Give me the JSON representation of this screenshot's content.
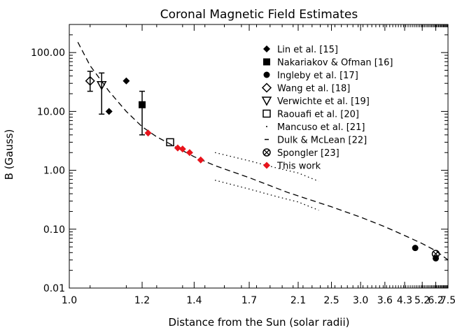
{
  "chart_data": {
    "type": "scatter",
    "title": "Coronal Magnetic Field Estimates",
    "xlabel": "Distance from the Sun (solar radii)",
    "ylabel": "B (Gauss)",
    "xscale": "reciprocal",
    "yscale": "log",
    "xlim": [
      1.0,
      7.5
    ],
    "ylim": [
      0.01,
      300
    ],
    "x_ticks": [
      "1.0",
      "1.2",
      "1.4",
      "1.7",
      "2.1",
      "2.5",
      "3.0",
      "3.6",
      "4.3",
      "5.2",
      "6.2",
      "7.5"
    ],
    "x_tick_values": [
      1.0,
      1.2,
      1.4,
      1.7,
      2.1,
      2.5,
      3.0,
      3.6,
      4.3,
      5.2,
      6.2,
      7.5
    ],
    "y_ticks": [
      "0.01",
      "0.10",
      "1.00",
      "10.00",
      "100.00"
    ],
    "y_tick_values": [
      0.01,
      0.1,
      1,
      10,
      100
    ],
    "legend_position": "top-right",
    "series": [
      {
        "name": "Lin et al. [15]",
        "marker": "filled-diamond",
        "color": "#000000",
        "points": [
          {
            "x": 1.1,
            "y": 10
          },
          {
            "x": 1.15,
            "y": 33
          }
        ]
      },
      {
        "name": "Nakariakov & Ofman [16]",
        "marker": "filled-square",
        "color": "#000000",
        "points": [
          {
            "x": 1.2,
            "y": 13,
            "y_err_low": 4,
            "y_err_high": 22
          }
        ]
      },
      {
        "name": "Ingleby et al. [17]",
        "marker": "filled-circle",
        "color": "#000000",
        "points": [
          {
            "x": 4.8,
            "y": 0.048
          },
          {
            "x": 6.2,
            "y": 0.032
          }
        ]
      },
      {
        "name": "Wang et al. [18]",
        "marker": "open-diamond",
        "color": "#000000",
        "points": [
          {
            "x": 1.05,
            "y": 33,
            "y_err_low": 22,
            "y_err_high": 48
          }
        ]
      },
      {
        "name": "Verwichte et al. [19]",
        "marker": "open-triangle-down",
        "color": "#000000",
        "points": [
          {
            "x": 1.08,
            "y": 28,
            "y_err_low": 9,
            "y_err_high": 45
          }
        ]
      },
      {
        "name": "Raouafi et al. [20]",
        "marker": "open-square",
        "color": "#000000",
        "points": [
          {
            "x": 1.3,
            "y": 3.0
          }
        ]
      },
      {
        "name": "Mancuso et al. [21]",
        "line": "dotted",
        "color": "#000000",
        "lines": [
          [
            [
              1.5,
              2.0
            ],
            [
              1.7,
              1.45
            ],
            [
              1.9,
              1.1
            ],
            [
              2.1,
              0.9
            ],
            [
              2.33,
              0.65
            ]
          ],
          [
            [
              1.5,
              0.68
            ],
            [
              1.7,
              0.48
            ],
            [
              1.9,
              0.36
            ],
            [
              2.1,
              0.29
            ],
            [
              2.33,
              0.21
            ]
          ]
        ]
      },
      {
        "name": "Dulk & McLean [22]",
        "line": "dashed",
        "color": "#000000",
        "lines": [
          [
            [
              1.02,
              150
            ],
            [
              1.05,
              60
            ],
            [
              1.1,
              22
            ],
            [
              1.15,
              10
            ],
            [
              1.2,
              5.5
            ],
            [
              1.25,
              3.7
            ],
            [
              1.3,
              2.8
            ],
            [
              1.4,
              1.7
            ],
            [
              1.5,
              1.2
            ],
            [
              1.7,
              0.75
            ],
            [
              2.0,
              0.42
            ],
            [
              2.5,
              0.24
            ],
            [
              3.0,
              0.16
            ],
            [
              3.6,
              0.11
            ],
            [
              4.3,
              0.078
            ],
            [
              5.2,
              0.057
            ],
            [
              6.2,
              0.043
            ],
            [
              7.5,
              0.03
            ]
          ]
        ]
      },
      {
        "name": "Spongler [23]",
        "marker": "circle-cross",
        "color": "#000000",
        "points": [
          {
            "x": 6.2,
            "y": 0.038
          }
        ]
      },
      {
        "name": "This work",
        "marker": "filled-diamond",
        "color": "#e8141c",
        "points": [
          {
            "x": 1.22,
            "y": 4.3
          },
          {
            "x": 1.33,
            "y": 2.4
          },
          {
            "x": 1.35,
            "y": 2.3
          },
          {
            "x": 1.38,
            "y": 2.0
          },
          {
            "x": 1.43,
            "y": 1.5
          }
        ]
      }
    ]
  }
}
